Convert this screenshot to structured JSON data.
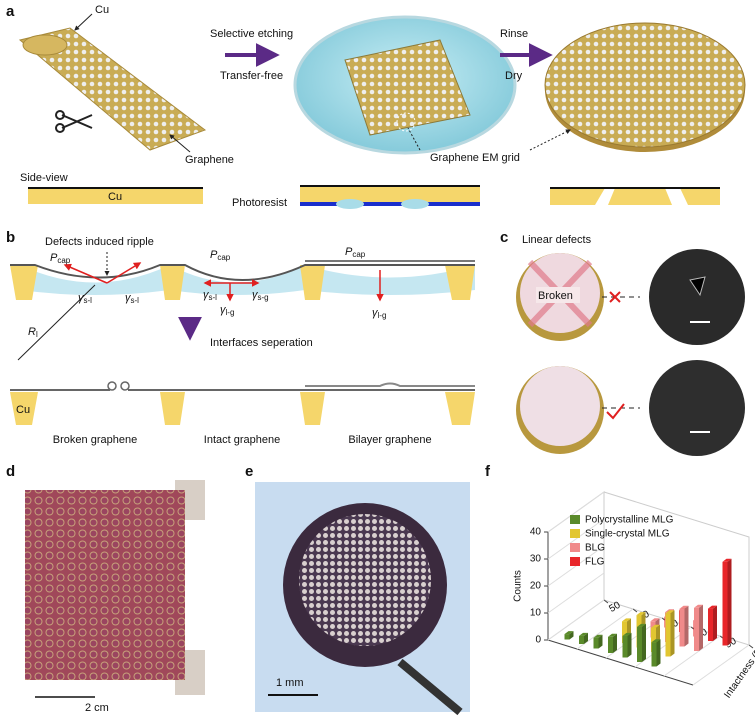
{
  "panels": {
    "a": {
      "label": "a",
      "texts": {
        "cu_top": "Cu",
        "step1": "Selective etching",
        "step1_sub": "Transfer-free",
        "step2": "Rinse",
        "step2_sub": "Dry",
        "graphene": "Graphene",
        "em_grid": "Graphene EM grid",
        "side_view": "Side-view",
        "cu_side": "Cu",
        "photoresist": "Photoresist"
      }
    },
    "b": {
      "label": "b",
      "texts": {
        "ripple": "Defects induced ripple",
        "p1": {
          "main": "P",
          "sub": "cap"
        },
        "p2": {
          "main": "P",
          "sub": "cap"
        },
        "p3": {
          "main": "P",
          "sub": "cap"
        },
        "g1": {
          "main": "γ",
          "sub": "s-l"
        },
        "g2": {
          "main": "γ",
          "sub": "s-l"
        },
        "g3": {
          "main": "γ",
          "sub": "s-l"
        },
        "g4": {
          "main": "γ",
          "sub": "s-g"
        },
        "g5": {
          "main": "γ",
          "sub": "l-g"
        },
        "g6": {
          "main": "γ",
          "sub": "l-g"
        },
        "radius": {
          "main": "R",
          "sub": "l"
        },
        "separation": "Interfaces seperation",
        "cu": "Cu",
        "broken": "Broken graphene",
        "intact": "Intact graphene",
        "bilayer": "Bilayer graphene"
      }
    },
    "c": {
      "label": "c",
      "texts": {
        "linear": "Linear defects",
        "broken": "Broken"
      }
    },
    "d": {
      "label": "d",
      "scale": "2 cm"
    },
    "e": {
      "label": "e",
      "scale": "1 mm"
    },
    "f": {
      "label": "f",
      "chart_data": {
        "type": "bar3d",
        "ylabel": "Counts",
        "xlabel": "Intactness (%)",
        "ylim": [
          0,
          40
        ],
        "yticks": [
          0,
          10,
          20,
          30,
          40
        ],
        "xlim": [
          50,
          100
        ],
        "xticks": [
          50,
          60,
          70,
          80,
          90,
          100
        ],
        "series": [
          {
            "name": "Polycrystalline MLG",
            "color": "#5a8a2a",
            "x": [
              55,
              60,
              65,
              70,
              75,
              80,
              85
            ],
            "values": [
              2,
              3,
              4,
              6,
              8,
              13,
              9
            ]
          },
          {
            "name": "Single-crystal MLG",
            "color": "#e2c631",
            "x": [
              70,
              75,
              80,
              85
            ],
            "values": [
              8,
              12,
              9,
              16
            ]
          },
          {
            "name": "BLG",
            "color": "#f08a8a",
            "x": [
              75,
              80,
              85,
              90
            ],
            "values": [
              6,
              11,
              14,
              16
            ]
          },
          {
            "name": "FLG",
            "color": "#e8262a",
            "x": [
              75,
              80,
              85,
              90,
              95
            ],
            "values": [
              4,
              8,
              6,
              12,
              31
            ]
          }
        ]
      }
    }
  }
}
